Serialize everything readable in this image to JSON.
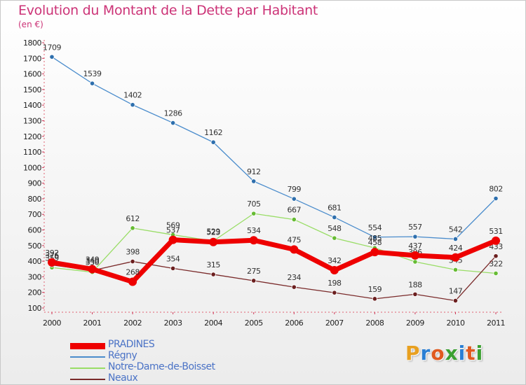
{
  "title": "Evolution du Montant de la Dette par Habitant",
  "subtitle": "(en €)",
  "logo": {
    "text": "Proxiti",
    "colors": [
      "#e8a020",
      "#2a7fd4",
      "#e05a20",
      "#3aa030",
      "#2a7fd4",
      "#e05a20",
      "#3aa030"
    ]
  },
  "chart_data": {
    "type": "line",
    "x": [
      "2000",
      "2001",
      "2002",
      "2003",
      "2004",
      "2005",
      "2006",
      "2007",
      "2008",
      "2009",
      "2010",
      "2011"
    ],
    "ylim": [
      100,
      1800
    ],
    "yticks": [
      100,
      200,
      300,
      400,
      500,
      600,
      700,
      800,
      900,
      1000,
      1100,
      1200,
      1300,
      1400,
      1500,
      1600,
      1700,
      1800
    ],
    "grid": false,
    "legend_position": "bottom-left",
    "series": [
      {
        "name": "Régny",
        "color": "#4a8ccc",
        "point_color": "#2e6fad",
        "width": 1.3,
        "values": [
          1709,
          1539,
          1402,
          1286,
          1162,
          912,
          799,
          681,
          554,
          557,
          542,
          802
        ]
      },
      {
        "name": "Notre-Dame-de-Boisset",
        "color": "#99dd66",
        "point_color": "#66bb33",
        "width": 1.3,
        "values": [
          359,
          330,
          612,
          569,
          529,
          705,
          667,
          548,
          485,
          396,
          345,
          322
        ]
      },
      {
        "name": "Neaux",
        "color": "#7a2a2a",
        "point_color": "#6b1f1f",
        "width": 1.3,
        "values": [
          376,
          340,
          398,
          354,
          315,
          275,
          234,
          198,
          159,
          188,
          147,
          433
        ]
      },
      {
        "name": "PRADINES",
        "color": "#ee0000",
        "point_color": "#ee0000",
        "width": 7,
        "values": [
          392,
          349,
          268,
          537,
          523,
          534,
          475,
          342,
          458,
          437,
          424,
          531
        ]
      }
    ],
    "legend_order": [
      "PRADINES",
      "Régny",
      "Notre-Dame-de-Boisset",
      "Neaux"
    ]
  }
}
